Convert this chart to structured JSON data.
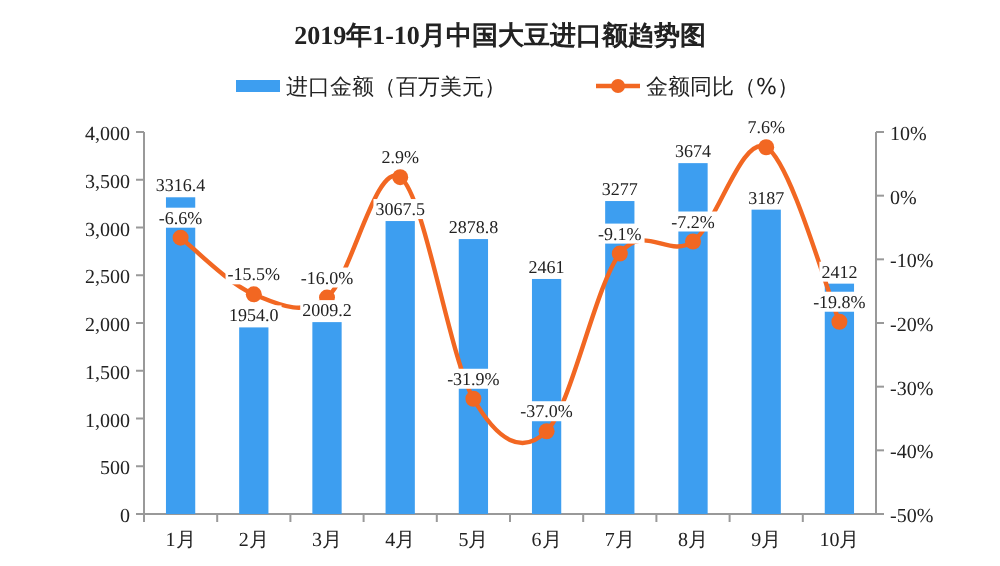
{
  "chart_data": {
    "type": "bar",
    "title": "2019年1-10月中国大豆进口额趋势图",
    "categories": [
      "1月",
      "2月",
      "3月",
      "4月",
      "5月",
      "6月",
      "7月",
      "8月",
      "9月",
      "10月"
    ],
    "series": [
      {
        "name": "进口金额（百万美元）",
        "color": "#3d9ef0",
        "values": [
          3316.4,
          1954.0,
          2009.2,
          3067.5,
          2878.8,
          2461,
          3277,
          3674,
          3187,
          2412
        ],
        "value_labels": [
          "3316.4",
          "1954.0",
          "2009.2",
          "3067.5",
          "2878.8",
          "2461",
          "3277",
          "3674",
          "3187",
          "2412"
        ]
      },
      {
        "name": "金额同比（%）",
        "type": "line",
        "axis": "y2",
        "color": "#f26722",
        "marker": "circle",
        "values": [
          -6.6,
          -15.5,
          -16.0,
          2.9,
          -31.9,
          -37.0,
          -9.1,
          -7.2,
          7.6,
          -19.8
        ],
        "value_labels": [
          "-6.6%",
          "-15.5%",
          "-16.0%",
          "2.9%",
          "-31.9%",
          "-37.0%",
          "-9.1%",
          "-7.2%",
          "7.6%",
          "-19.8%"
        ]
      }
    ],
    "ylim": [
      0,
      4000
    ],
    "yticks": [
      {
        "value": 0,
        "label": "0"
      },
      {
        "value": 500,
        "label": "500"
      },
      {
        "value": 1000,
        "label": "1,000"
      },
      {
        "value": 1500,
        "label": "1,500"
      },
      {
        "value": 2000,
        "label": "2,000"
      },
      {
        "value": 2500,
        "label": "2,500"
      },
      {
        "value": 3000,
        "label": "3,000"
      },
      {
        "value": 3500,
        "label": "3,500"
      },
      {
        "value": 4000,
        "label": "4,000"
      }
    ],
    "y2lim": [
      -50,
      10
    ],
    "y2ticks": [
      {
        "value": -50,
        "label": "-50%"
      },
      {
        "value": -40,
        "label": "-40%"
      },
      {
        "value": -30,
        "label": "-30%"
      },
      {
        "value": -20,
        "label": "-20%"
      },
      {
        "value": -10,
        "label": "-10%"
      },
      {
        "value": 0,
        "label": "0%"
      },
      {
        "value": 10,
        "label": "10%"
      }
    ],
    "legend": "top",
    "grid": false
  }
}
